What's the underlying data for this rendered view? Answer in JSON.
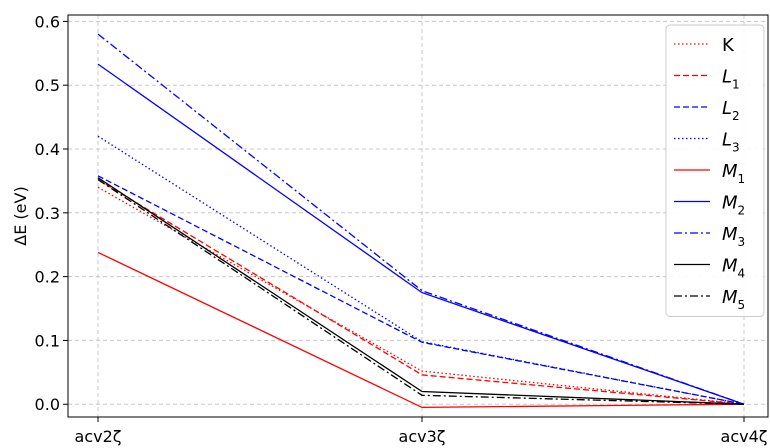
{
  "chart_data": {
    "type": "line",
    "title": "",
    "xlabel": "",
    "ylabel": "ΔE (eV)",
    "categories": [
      "acv2ζ",
      "acv3ζ",
      "acv4ζ"
    ],
    "yticks": [
      "0.0",
      "0.1",
      "0.2",
      "0.3",
      "0.4",
      "0.5",
      "0.6"
    ],
    "ylim": [
      -0.02,
      0.61
    ],
    "grid": true,
    "legend_position": "right",
    "series": [
      {
        "name": "K",
        "values": [
          0.34,
          0.052,
          0.0
        ],
        "color": "#ff0000",
        "style": "dotted"
      },
      {
        "name": "L1",
        "values": [
          0.352,
          0.046,
          0.0
        ],
        "color": "#ff0000",
        "style": "dashed"
      },
      {
        "name": "L2",
        "values": [
          0.358,
          0.097,
          0.0
        ],
        "color": "#0000ff",
        "style": "dashed"
      },
      {
        "name": "L3",
        "values": [
          0.42,
          0.098,
          0.0
        ],
        "color": "#0000ff",
        "style": "dotted"
      },
      {
        "name": "M1",
        "values": [
          0.238,
          -0.005,
          0.0
        ],
        "color": "#ff0000",
        "style": "solid"
      },
      {
        "name": "M2",
        "values": [
          0.533,
          0.175,
          0.0
        ],
        "color": "#0000ff",
        "style": "solid"
      },
      {
        "name": "M3",
        "values": [
          0.58,
          0.178,
          0.0
        ],
        "color": "#0000ff",
        "style": "dashdot"
      },
      {
        "name": "M4",
        "values": [
          0.355,
          0.02,
          0.0
        ],
        "color": "#000000",
        "style": "solid"
      },
      {
        "name": "M5",
        "values": [
          0.352,
          0.014,
          0.0
        ],
        "color": "#000000",
        "style": "dashdot"
      }
    ]
  }
}
